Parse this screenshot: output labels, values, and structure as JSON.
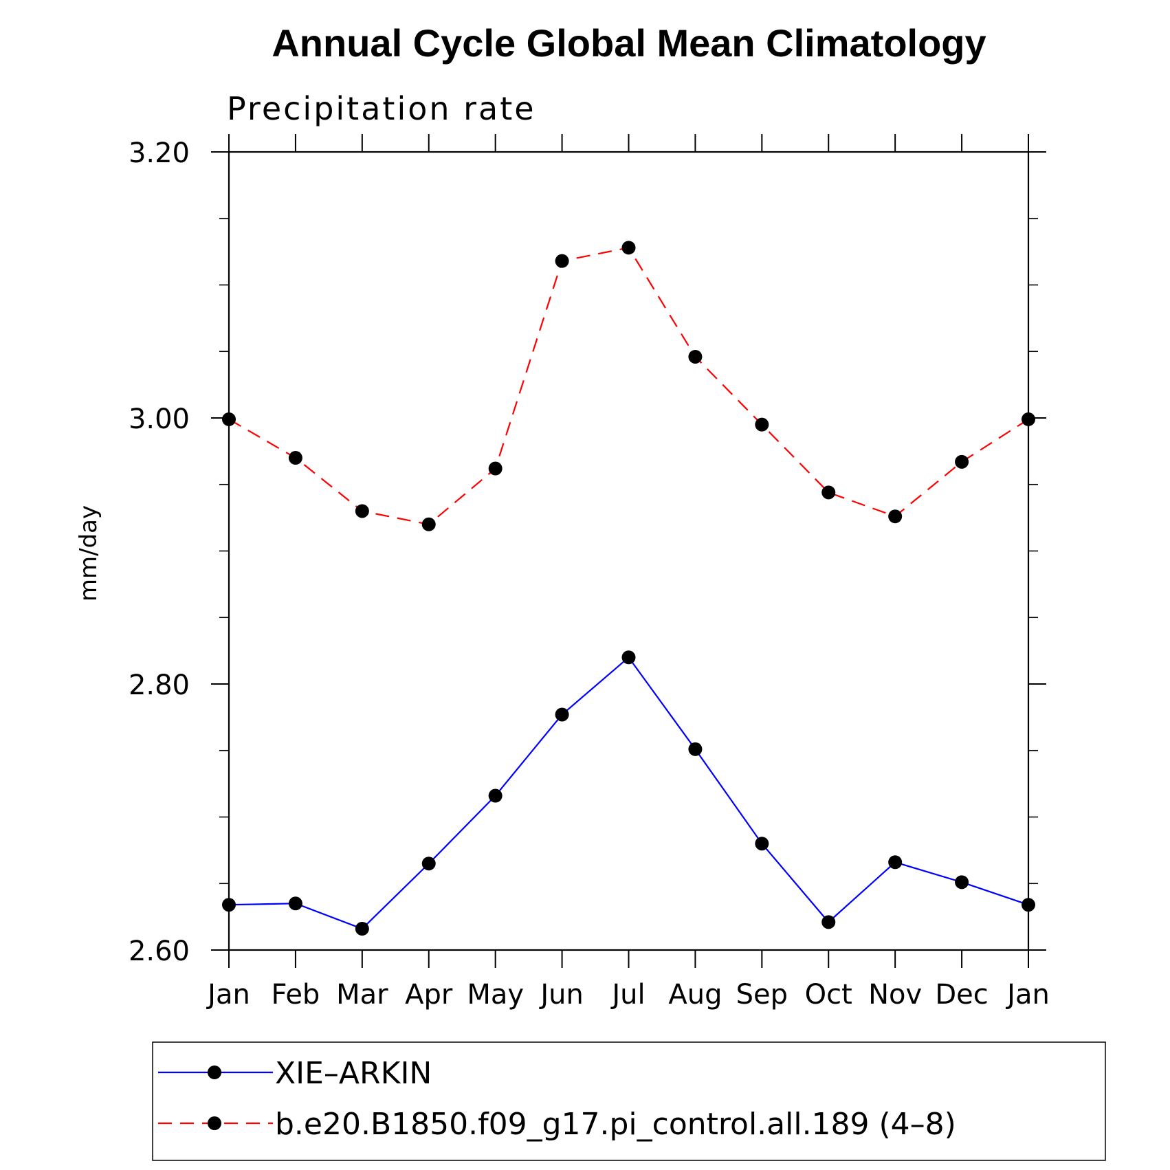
{
  "chart_data": {
    "type": "line",
    "title": "Annual Cycle Global Mean Climatology",
    "subtitle": "Precipitation rate",
    "ylabel": "mm/day",
    "xlabel": "",
    "categories": [
      "Jan",
      "Feb",
      "Mar",
      "Apr",
      "May",
      "Jun",
      "Jul",
      "Aug",
      "Sep",
      "Oct",
      "Nov",
      "Dec",
      "Jan"
    ],
    "ylim": [
      2.6,
      3.2
    ],
    "yticks": [
      "2.60",
      "2.80",
      "3.00",
      "3.20"
    ],
    "ytick_values": [
      2.6,
      2.8,
      3.0,
      3.2
    ],
    "yminor_step": 0.05,
    "grid": false,
    "legend_position": "bottom",
    "series": [
      {
        "name": "XIE–ARKIN",
        "color": "#0000ff",
        "style": "solid",
        "marker": "filled-circle",
        "values": [
          2.634,
          2.635,
          2.616,
          2.665,
          2.716,
          2.777,
          2.82,
          2.751,
          2.68,
          2.621,
          2.666,
          2.651,
          2.634
        ]
      },
      {
        "name": "b.e20.B1850.f09_g17.pi_control.all.189 (4–8)",
        "color": "#ff0000",
        "style": "dashed",
        "marker": "filled-circle",
        "values": [
          2.999,
          2.97,
          2.93,
          2.92,
          2.962,
          3.118,
          3.128,
          3.046,
          2.995,
          2.944,
          2.926,
          2.967,
          2.999
        ]
      }
    ]
  }
}
